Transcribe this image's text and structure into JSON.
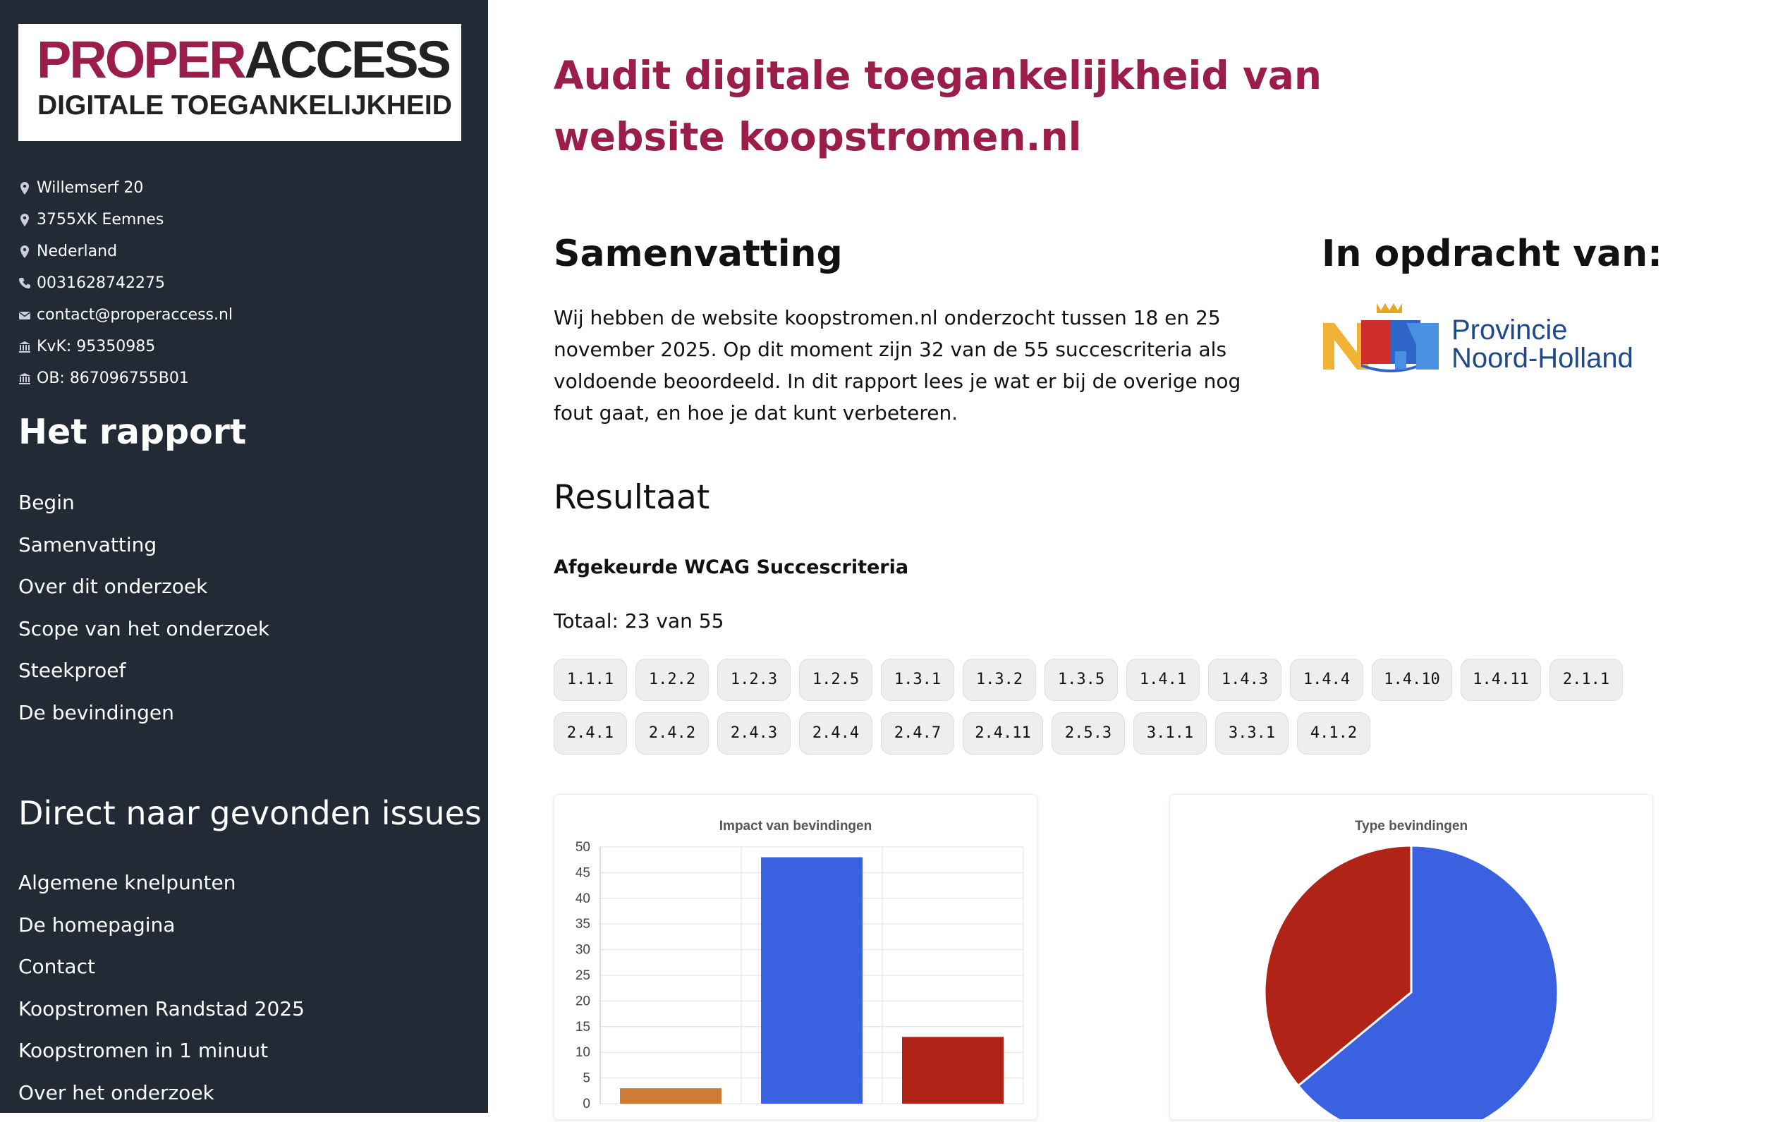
{
  "sidebar": {
    "logo": {
      "word1": "PROPER",
      "word2": "ACCESS",
      "tagline": "DIGITALE TOEGANKELIJKHEID"
    },
    "contact": [
      {
        "icon": "map-pin-icon",
        "text": "Willemserf 20"
      },
      {
        "icon": "map-pin-icon",
        "text": "3755XK Eemnes"
      },
      {
        "icon": "map-pin-icon",
        "text": "Nederland"
      },
      {
        "icon": "phone-icon",
        "text": "0031628742275"
      },
      {
        "icon": "envelope-icon",
        "text": "contact@properaccess.nl"
      },
      {
        "icon": "bank-icon",
        "text": "KvK: 95350985"
      },
      {
        "icon": "bank-icon",
        "text": "OB: 867096755B01"
      }
    ],
    "report_heading": "Het rapport",
    "report_nav": [
      "Begin",
      "Samenvatting",
      "Over dit onderzoek",
      "Scope van het onderzoek",
      "Steekproef",
      "De bevindingen"
    ],
    "issues_heading": "Direct naar gevonden issues",
    "issues_nav": [
      "Algemene knelpunten",
      "De homepagina",
      "Contact",
      "Koopstromen Randstad 2025",
      "Koopstromen in 1 minuut",
      "Over het onderzoek"
    ]
  },
  "main": {
    "title": "Audit digitale toegankelijkheid van website koopstromen.nl",
    "summary_heading": "Samenvatting",
    "summary_text": "Wij hebben de website koopstromen.nl onderzocht tussen 18 en 25 november 2025. Op dit moment zijn 32 van de 55 succescriteria als voldoende beoordeeld. In dit rapport lees je wat er bij de overige nog fout gaat, en hoe je dat kunt verbeteren.",
    "client_heading": "In opdracht van:",
    "client_logo": {
      "line1": "Provincie",
      "line2": "Noord-Holland"
    },
    "result_heading": "Resultaat",
    "criteria_heading": "Afgekeurde WCAG Succescriteria",
    "total": "Totaal: 23 van 55",
    "criteria": [
      "1.1.1",
      "1.2.2",
      "1.2.3",
      "1.2.5",
      "1.3.1",
      "1.3.2",
      "1.3.5",
      "1.4.1",
      "1.4.3",
      "1.4.4",
      "1.4.10",
      "1.4.11",
      "2.1.1",
      "2.4.1",
      "2.4.2",
      "2.4.3",
      "2.4.4",
      "2.4.7",
      "2.4.11",
      "2.5.3",
      "3.1.1",
      "3.3.1",
      "4.1.2"
    ]
  },
  "chart_data": [
    {
      "type": "bar",
      "title": "Impact van bevindingen",
      "categories": [
        "",
        "",
        ""
      ],
      "values": [
        3,
        48,
        13
      ],
      "colors": [
        "#d07b34",
        "#3a62e0",
        "#b02418"
      ],
      "ylim": [
        0,
        50
      ],
      "yticks": [
        0,
        5,
        10,
        15,
        20,
        25,
        30,
        35,
        40,
        45,
        50
      ],
      "grid": true
    },
    {
      "type": "pie",
      "title": "Type bevindingen",
      "values": [
        64,
        36
      ],
      "colors": [
        "#3a62e0",
        "#b02418"
      ]
    }
  ]
}
